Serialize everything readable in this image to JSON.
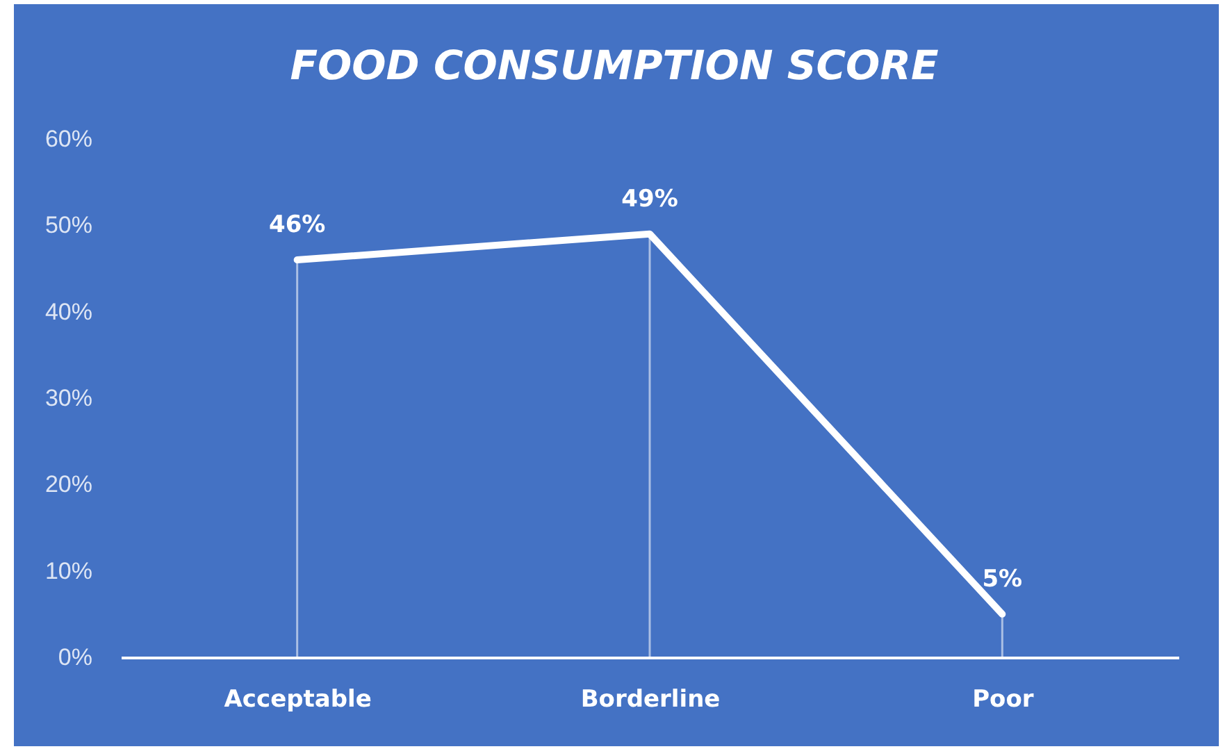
{
  "chart_data": {
    "type": "line",
    "title": "FOOD CONSUMPTION SCORE",
    "categories": [
      "Acceptable",
      "Borderline",
      "Poor"
    ],
    "series": [
      {
        "color": "#ffffff",
        "values": [
          46,
          49,
          5
        ],
        "value_labels": [
          "46%",
          "49%",
          "5%"
        ]
      }
    ],
    "ylim": [
      0,
      60
    ],
    "yticks": [
      {
        "value": 0,
        "label": "0%"
      },
      {
        "value": 10,
        "label": "10%"
      },
      {
        "value": 20,
        "label": "20%"
      },
      {
        "value": 30,
        "label": "30%"
      },
      {
        "value": 40,
        "label": "40%"
      },
      {
        "value": 50,
        "label": "50%"
      },
      {
        "value": 60,
        "label": "60%"
      }
    ],
    "line_style": "solid"
  }
}
